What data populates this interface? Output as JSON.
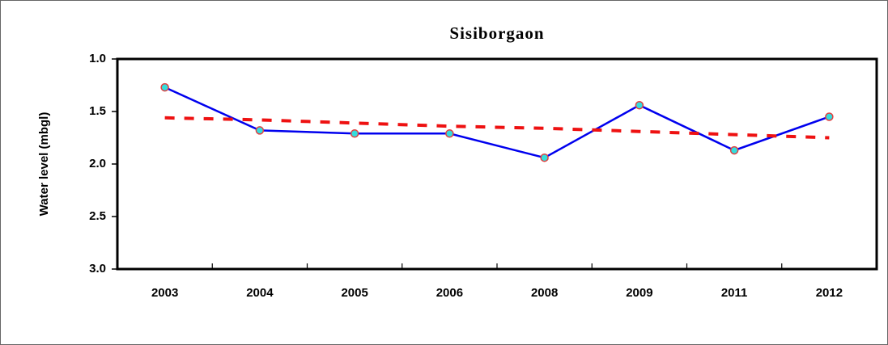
{
  "chart_data": {
    "type": "line",
    "title": "Sisiborgaon",
    "y_label": "Water level (mbgl)",
    "categories": [
      "2003",
      "2004",
      "2005",
      "2006",
      "2008",
      "2009",
      "2011",
      "2012"
    ],
    "series": [
      {
        "color": "#0000ee",
        "marker_fill": "#33dddd",
        "marker_stroke": "#e04040",
        "dashed": false,
        "values": [
          1.27,
          1.68,
          1.71,
          1.71,
          1.94,
          1.44,
          1.87,
          1.55
        ]
      },
      {
        "color": "#ee1111",
        "dashed": true,
        "values": [
          1.56,
          1.58,
          1.61,
          1.64,
          1.66,
          1.69,
          1.72,
          1.75
        ]
      }
    ],
    "ylim": [
      1,
      3
    ],
    "y_inverted": true,
    "yticks": [
      {
        "value": 1,
        "label": "1.0"
      },
      1.5,
      {
        "value": 2,
        "label": "2.0"
      },
      2.5,
      {
        "value": 3,
        "label": "3.0"
      }
    ],
    "grid": false
  }
}
